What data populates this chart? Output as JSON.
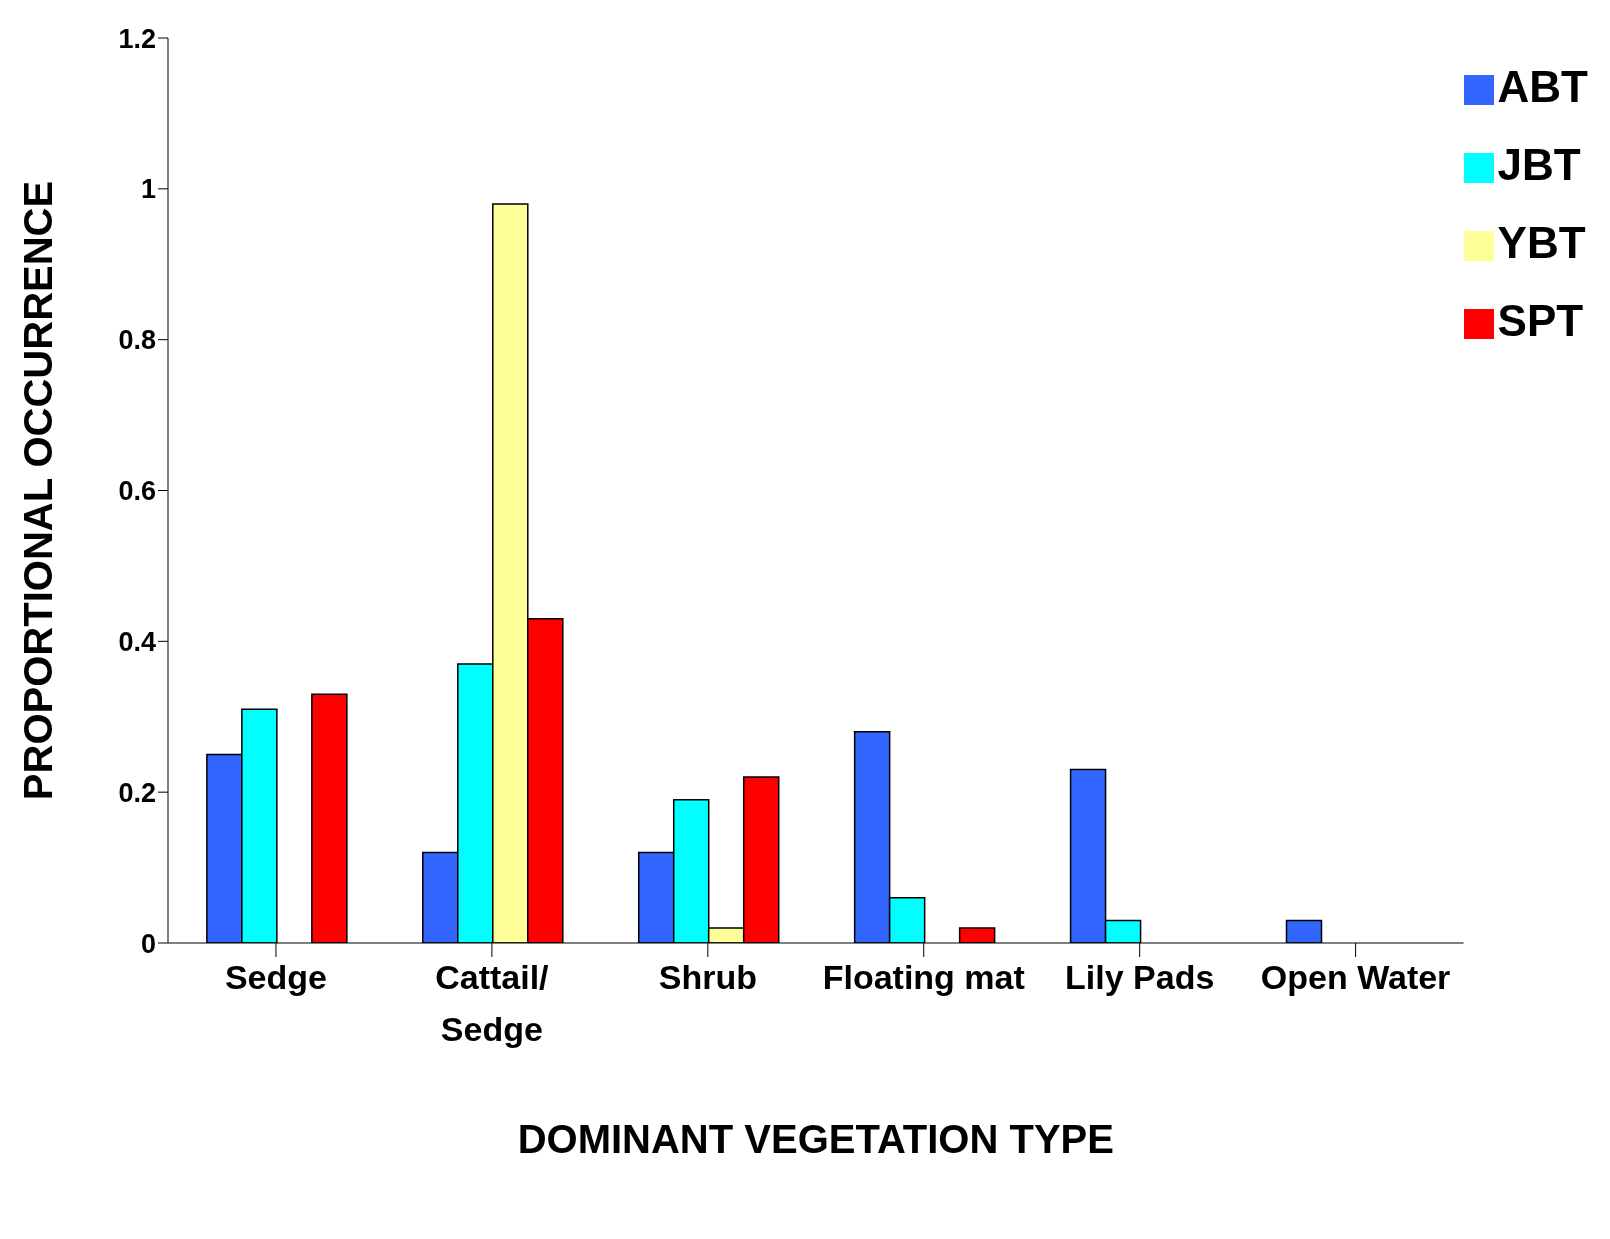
{
  "chart_data": {
    "type": "bar",
    "xlabel": "DOMINANT VEGETATION TYPE",
    "ylabel": "PROPORTIONAL OCCURRENCE",
    "categories": [
      "Sedge",
      "Cattail/\nSedge",
      "Shrub",
      "Floating mat",
      "Lily Pads",
      "Open Water"
    ],
    "series": [
      {
        "name": "ABT",
        "color": "#3366ff",
        "values": [
          0.25,
          0.12,
          0.12,
          0.28,
          0.23,
          0.03
        ]
      },
      {
        "name": "JBT",
        "color": "#00ffff",
        "values": [
          0.31,
          0.37,
          0.19,
          0.06,
          0.03,
          0
        ]
      },
      {
        "name": "YBT",
        "color": "#ffff99",
        "values": [
          0,
          0.98,
          0.02,
          0,
          0,
          0
        ]
      },
      {
        "name": "SPT",
        "color": "#ff0000",
        "values": [
          0.33,
          0.43,
          0.22,
          0.02,
          0,
          0
        ]
      }
    ],
    "ylim": [
      0,
      1.2
    ],
    "yticks": [
      0,
      0.2,
      0.4,
      0.6,
      0.8,
      1,
      1.2
    ],
    "grid": false,
    "legend": "top right"
  }
}
